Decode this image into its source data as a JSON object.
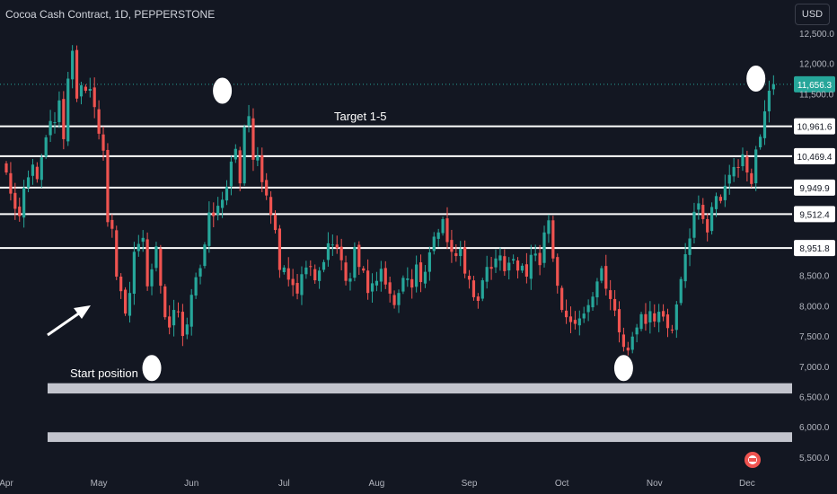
{
  "header": {
    "title": "Cocoa Cash Contract, 1D, PEPPERSTONE",
    "currency": "USD"
  },
  "colors": {
    "background": "#131722",
    "up": "#26a69a",
    "down": "#ef5350",
    "level_line": "#ffffff",
    "last_price_bg": "#26a69a",
    "band": "#d1d4dc"
  },
  "annotations": {
    "target_text": "Target 1-5",
    "start_text": "Start position",
    "arrow": "arrow-up-right-icon"
  },
  "chart_data": {
    "type": "candlestick",
    "y_axis": {
      "range": [
        5400,
        12650
      ],
      "ticks": [
        5500,
        6000,
        6500,
        7000,
        7500,
        8000,
        8500,
        11500,
        12000,
        12500
      ],
      "tick_labels": [
        "5,500.0",
        "6,000.0",
        "6,500.0",
        "7,000.0",
        "7,500.0",
        "8,000.0",
        "8,500.0",
        "11,500.0",
        "12,000.0",
        "12,500.0"
      ]
    },
    "x_axis": {
      "labels": [
        "Apr",
        "May",
        "Jun",
        "Jul",
        "Aug",
        "Sep",
        "Oct",
        "Nov",
        "Dec"
      ],
      "day_index": [
        0,
        21,
        42,
        63,
        84,
        105,
        126,
        147,
        168
      ]
    },
    "horizontal_levels": [
      {
        "value": 10961.6,
        "label": "10,961.6"
      },
      {
        "value": 10469.4,
        "label": "10,469.4"
      },
      {
        "value": 9949.9,
        "label": "9,949.9"
      },
      {
        "value": 9512.4,
        "label": "9,512.4"
      },
      {
        "value": 8951.8,
        "label": "8,951.8"
      }
    ],
    "last_price": {
      "value": 11656.3,
      "label": "11,656.3"
    },
    "bands": [
      [
        6550,
        6720
      ],
      [
        5750,
        5910
      ]
    ],
    "markers": [
      {
        "day": 49,
        "value": 11550
      },
      {
        "day": 33,
        "value": 6970
      },
      {
        "day": 140,
        "value": 6970
      },
      {
        "day": 170,
        "value": 11750
      }
    ],
    "closes": [
      10200,
      9850,
      9600,
      9480,
      9950,
      10120,
      10330,
      10090,
      10450,
      10780,
      11050,
      11030,
      11390,
      10750,
      11750,
      12210,
      11420,
      11640,
      11550,
      11580,
      11280,
      10840,
      10560,
      9380,
      9270,
      8480,
      8240,
      7870,
      8210,
      8890,
      9020,
      9120,
      8320,
      8600,
      8980,
      8330,
      7810,
      7640,
      7930,
      7900,
      7500,
      7690,
      8180,
      8470,
      8620,
      9010,
      9540,
      9480,
      9650,
      9750,
      9960,
      10380,
      10590,
      10020,
      10950,
      11130,
      10410,
      10470,
      10040,
      9820,
      9500,
      9250,
      8590,
      8630,
      8430,
      8340,
      8200,
      8520,
      8630,
      8640,
      8420,
      8580,
      8720,
      9030,
      9010,
      8950,
      8750,
      8410,
      8450,
      8970,
      8640,
      8580,
      8210,
      8370,
      8410,
      8610,
      8350,
      8200,
      8010,
      8210,
      8460,
      8450,
      8300,
      8680,
      8390,
      8560,
      8880,
      9140,
      9210,
      9430,
      9050,
      8890,
      8820,
      8940,
      8530,
      8430,
      8140,
      8080,
      8420,
      8640,
      8610,
      8780,
      8830,
      8570,
      8710,
      8770,
      8580,
      8660,
      8480,
      8840,
      8860,
      8670,
      9210,
      9410,
      8780,
      8330,
      7930,
      7810,
      7730,
      7700,
      7790,
      7870,
      8010,
      8150,
      8400,
      8620,
      8280,
      8110,
      7920,
      7560,
      7320,
      7260,
      7490,
      7640,
      7860,
      7700,
      7910,
      7740,
      7900,
      7820,
      7630,
      7600,
      8020,
      8440,
      8850,
      9110,
      9550,
      9690,
      9430,
      9210,
      9630,
      9810,
      9730,
      9980,
      10160,
      10290,
      10280,
      10500,
      10200,
      10010,
      10580,
      10790,
      11210,
      11550,
      11656.3
    ],
    "series": [
      {
        "kind": "candles",
        "up_color": "#26a69a",
        "down_color": "#ef5350"
      }
    ]
  }
}
